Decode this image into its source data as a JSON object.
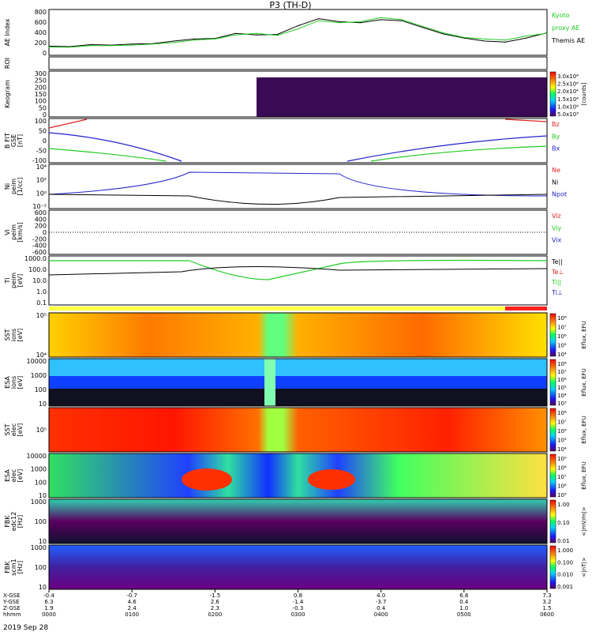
{
  "title": "P3 (TH-D)",
  "date": "2019 Sep 28",
  "time_axis": {
    "row_labels": [
      "X-GSE",
      "Y-GSE",
      "Z-GSE",
      "hhmm"
    ],
    "columns": [
      {
        "x": "-0.4",
        "y": "6.3",
        "z": "1.9",
        "t": "0000"
      },
      {
        "x": "-0.7",
        "y": "4.6",
        "z": "2.4",
        "t": "0100"
      },
      {
        "x": "-1.5",
        "y": "2.6",
        "z": "2.3",
        "t": "0200"
      },
      {
        "x": "0.8",
        "y": "-1.4",
        "z": "-0.3",
        "t": "0300"
      },
      {
        "x": "4.0",
        "y": "-3.7",
        "z": "0.4",
        "t": "0400"
      },
      {
        "x": "6.8",
        "y": "0.4",
        "z": "1.0",
        "t": "0500"
      },
      {
        "x": "7.3",
        "y": "3.2",
        "z": "1.5",
        "t": "0600"
      }
    ]
  },
  "panels": [
    {
      "id": "ae",
      "ylabel": [
        "AE Index"
      ],
      "ticks": [
        "800",
        "600",
        "400",
        "200",
        "0"
      ],
      "right": [
        {
          "text": "Kyoto",
          "color": "#22cc22"
        },
        {
          "text": "proxy AE",
          "color": "#22cc22"
        },
        {
          "text": "Themis AE",
          "color": "#000000"
        }
      ]
    },
    {
      "id": "roi",
      "ylabel": [
        "ROI"
      ],
      "ticks": [],
      "right": []
    },
    {
      "id": "keogram",
      "ylabel": [
        "Keogram"
      ],
      "ticks": [
        "300",
        "250",
        "200",
        "150",
        "100",
        "50",
        "0"
      ],
      "right": [],
      "colorbar": {
        "labels": [
          "3.0x10⁴",
          "2.5x10⁴",
          "2.0x10⁴",
          "1.5x10⁴",
          "1.0x10⁴",
          "5.0x10³"
        ],
        "title": "[counts]"
      }
    },
    {
      "id": "bfield",
      "ylabel": [
        "B FIT",
        "GSE",
        "[nT]"
      ],
      "ticks": [
        "100",
        "50",
        "0",
        "-50",
        "-100"
      ],
      "right": [
        {
          "text": "Bz",
          "color": "#dd2222"
        },
        {
          "text": "By",
          "color": "#22cc22"
        },
        {
          "text": "Bx",
          "color": "#2222cc"
        }
      ]
    },
    {
      "id": "density",
      "ylabel": [
        "Ni",
        "peim",
        "[1/cc]"
      ],
      "ticks": [
        "10⁴",
        "10²",
        "10⁰",
        "10⁻²"
      ],
      "right": [
        {
          "text": "Ne",
          "color": "#dd2222"
        },
        {
          "text": "Ni",
          "color": "#000000"
        },
        {
          "text": "Npot",
          "color": "#2222cc"
        }
      ]
    },
    {
      "id": "velocity",
      "ylabel": [
        "Vi",
        "peim",
        "[km/s]"
      ],
      "ticks": [
        "600",
        "400",
        "200",
        "0",
        "-200",
        "-400",
        "-600"
      ],
      "right": [
        {
          "text": "Viz",
          "color": "#dd2222"
        },
        {
          "text": "Viy",
          "color": "#22cc22"
        },
        {
          "text": "Vix",
          "color": "#2222cc"
        }
      ]
    },
    {
      "id": "temp",
      "ylabel": [
        "Ti",
        "peim",
        "[eV]"
      ],
      "ticks": [
        "1000.0",
        "100.0",
        "10.0",
        "1.0",
        "0.1"
      ],
      "right": [
        {
          "text": "Te||",
          "color": "#000000"
        },
        {
          "text": "Te⊥",
          "color": "#dd2222"
        },
        {
          "text": "Ti||",
          "color": "#22cc22"
        },
        {
          "text": "Ti⊥",
          "color": "#2222cc"
        }
      ]
    },
    {
      "id": "sst_i",
      "ylabel": [
        "SST",
        "ions",
        "[eV]"
      ],
      "ticks": [
        "10⁵",
        "10⁴"
      ],
      "right": [],
      "colorbar": {
        "labels": [
          "10⁸",
          "10⁷",
          "10⁶",
          "10⁵",
          "10⁴"
        ],
        "title": "Eflux, EFU"
      }
    },
    {
      "id": "esa_i",
      "ylabel": [
        "ESA",
        "ions",
        "[eV]"
      ],
      "ticks": [
        "10000",
        "1000",
        "100",
        "10"
      ],
      "right": [],
      "colorbar": {
        "labels": [
          "10⁸",
          "10⁷",
          "10⁶",
          "10⁵",
          "10⁴",
          "10³"
        ],
        "title": "Eflux, EFU"
      }
    },
    {
      "id": "sst_e",
      "ylabel": [
        "SST",
        "elec",
        "[eV]"
      ],
      "ticks": [
        "10⁵"
      ],
      "right": [],
      "colorbar": {
        "labels": [
          "10⁸",
          "10⁷",
          "10⁶",
          "10⁵",
          "10⁴"
        ],
        "title": "Eflux, EFU"
      }
    },
    {
      "id": "esa_e",
      "ylabel": [
        "ESA",
        "elec",
        "[eV]"
      ],
      "ticks": [
        "10000",
        "1000",
        "100",
        "10"
      ],
      "right": [],
      "colorbar": {
        "labels": [
          "10⁹",
          "10⁸",
          "10⁷",
          "10⁶",
          "10⁵"
        ],
        "title": "Eflux, EFU"
      }
    },
    {
      "id": "fbk_e",
      "ylabel": [
        "FBK",
        "edc12",
        "[Hz]"
      ],
      "ticks": [
        "1000",
        "100",
        "10"
      ],
      "right": [],
      "colorbar": {
        "labels": [
          "1.00",
          "0.10",
          "0.01"
        ],
        "title": "<|mV/m|>"
      }
    },
    {
      "id": "fbk_b",
      "ylabel": [
        "FBK",
        "scm1",
        "[Hz]"
      ],
      "ticks": [
        "1000",
        "100",
        "10"
      ],
      "right": [],
      "colorbar": {
        "labels": [
          "1.000",
          "0.100",
          "0.010",
          "0.001"
        ],
        "title": "<|nT|>"
      }
    }
  ],
  "chart_data": {
    "type": "line",
    "title": "P3 (TH-D)",
    "x_range_hours": [
      0,
      6
    ],
    "series": [
      {
        "name": "Themis AE",
        "color": "#000000",
        "x": [
          0,
          0.25,
          0.5,
          0.75,
          1.0,
          1.25,
          1.5,
          1.75,
          2.0,
          2.25,
          2.5,
          2.75,
          3.0,
          3.25,
          3.5,
          3.75,
          4.0,
          4.25,
          4.5,
          4.75,
          5.0,
          5.25,
          5.5,
          5.75,
          6.0
        ],
        "y": [
          80,
          70,
          110,
          100,
          120,
          130,
          180,
          220,
          230,
          330,
          300,
          310,
          480,
          620,
          560,
          540,
          600,
          580,
          450,
          320,
          240,
          180,
          160,
          240,
          340
        ]
      },
      {
        "name": "Kyoto proxy AE",
        "color": "#22cc22",
        "x": [
          0,
          0.25,
          0.5,
          0.75,
          1.0,
          1.25,
          1.5,
          1.75,
          2.0,
          2.25,
          2.5,
          2.75,
          3.0,
          3.25,
          3.5,
          3.75,
          4.0,
          4.25,
          4.5,
          4.75,
          5.0,
          5.25,
          5.5,
          5.75,
          6.0
        ],
        "y": [
          60,
          60,
          90,
          90,
          100,
          120,
          150,
          200,
          220,
          300,
          330,
          290,
          420,
          580,
          540,
          560,
          640,
          600,
          470,
          340,
          250,
          220,
          200,
          280,
          330
        ]
      }
    ],
    "ylim": [
      -100,
      800
    ]
  },
  "colors": {
    "axis": "#000000",
    "red": "#dd2222",
    "green": "#22cc22",
    "blue": "#2222cc"
  }
}
